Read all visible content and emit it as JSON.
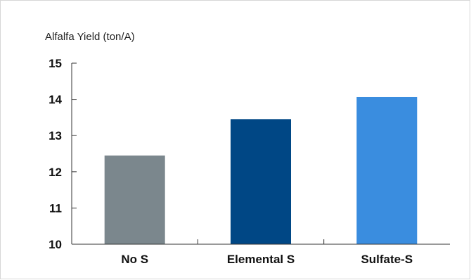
{
  "chart_data": {
    "type": "bar",
    "title": "",
    "ylabel": "Alfalfa Yield (ton/A)",
    "xlabel": "",
    "categories": [
      "No S",
      "Elemental S",
      "Sulfate-S"
    ],
    "values": [
      12.45,
      13.45,
      14.07
    ],
    "colors": [
      "#7b878d",
      "#004785",
      "#3a8ddf"
    ],
    "ylim": [
      10,
      15
    ],
    "yticks": [
      "10",
      "11",
      "12",
      "13",
      "14",
      "15"
    ],
    "grid": false,
    "legend": "none"
  }
}
